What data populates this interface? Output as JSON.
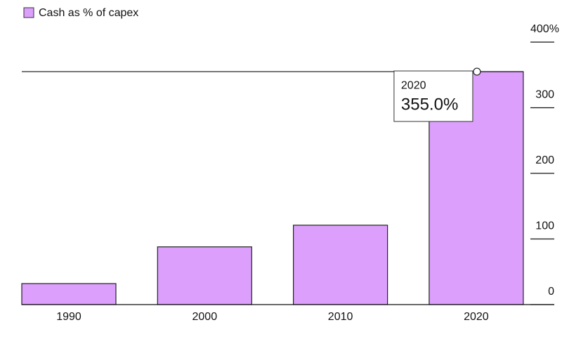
{
  "chart_data": {
    "type": "bar",
    "categories": [
      "1990",
      "2000",
      "2010",
      "2020"
    ],
    "series": [
      {
        "name": "Cash as % of capex",
        "color": "#dca0fc",
        "values": [
          32,
          88,
          121,
          355
        ],
        "value_labels": [
          null,
          null,
          null,
          "355.0%"
        ]
      }
    ],
    "ylim": [
      0,
      400
    ],
    "yticks": [
      0,
      100,
      200,
      300,
      {
        "value": 400,
        "label": "400%"
      }
    ],
    "legend": "top-left"
  }
}
